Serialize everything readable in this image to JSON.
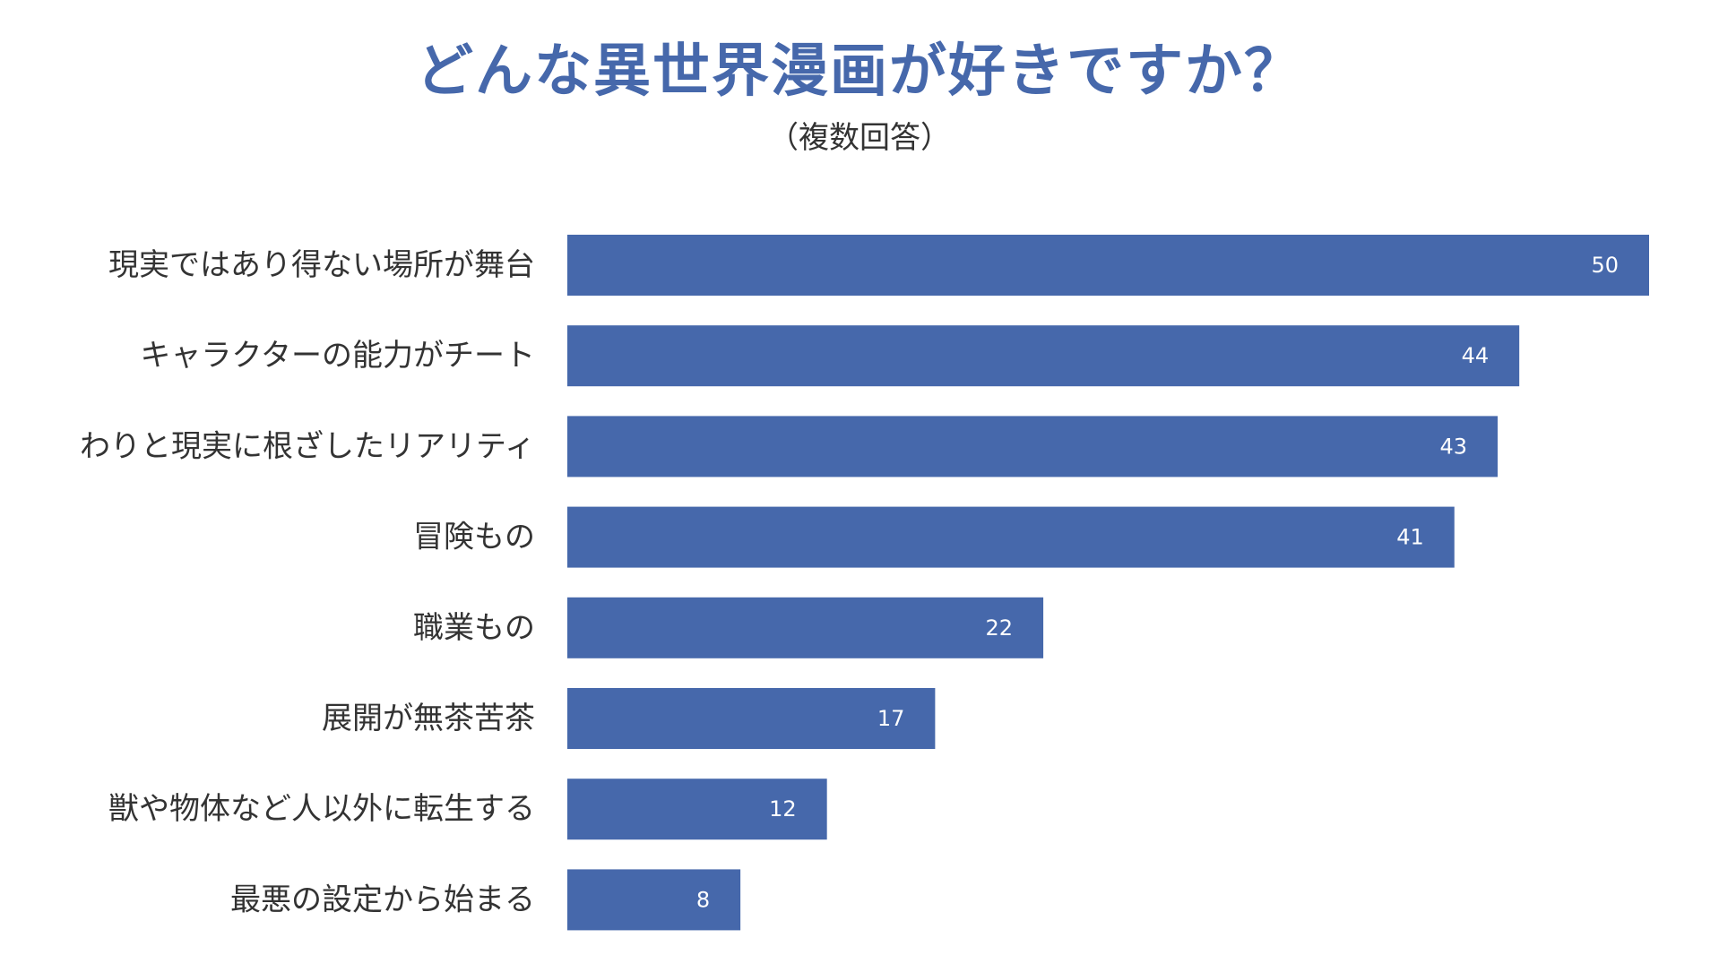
{
  "chart_data": {
    "type": "bar",
    "orientation": "horizontal",
    "title": "どんな異世界漫画が好きですか？",
    "subtitle": "（複数回答）",
    "categories": [
      "現実ではあり得ない場所が舞台",
      "キャラクターの能力がチート",
      "わりと現実に根ざしたリアリティ",
      "冒険もの",
      "職業もの",
      "展開が無茶苦茶",
      "獣や物体など人以外に転生する",
      "最悪の設定から始まる"
    ],
    "values": [
      50,
      44,
      43,
      41,
      22,
      17,
      12,
      8
    ],
    "xlim": [
      0,
      50
    ],
    "grid": false,
    "legend": "none",
    "data_labels": "inside-end"
  },
  "colors": {
    "bar": "#4668AB",
    "title": "#4668AB",
    "label_text": "#333333",
    "value_text": "#ffffff"
  }
}
